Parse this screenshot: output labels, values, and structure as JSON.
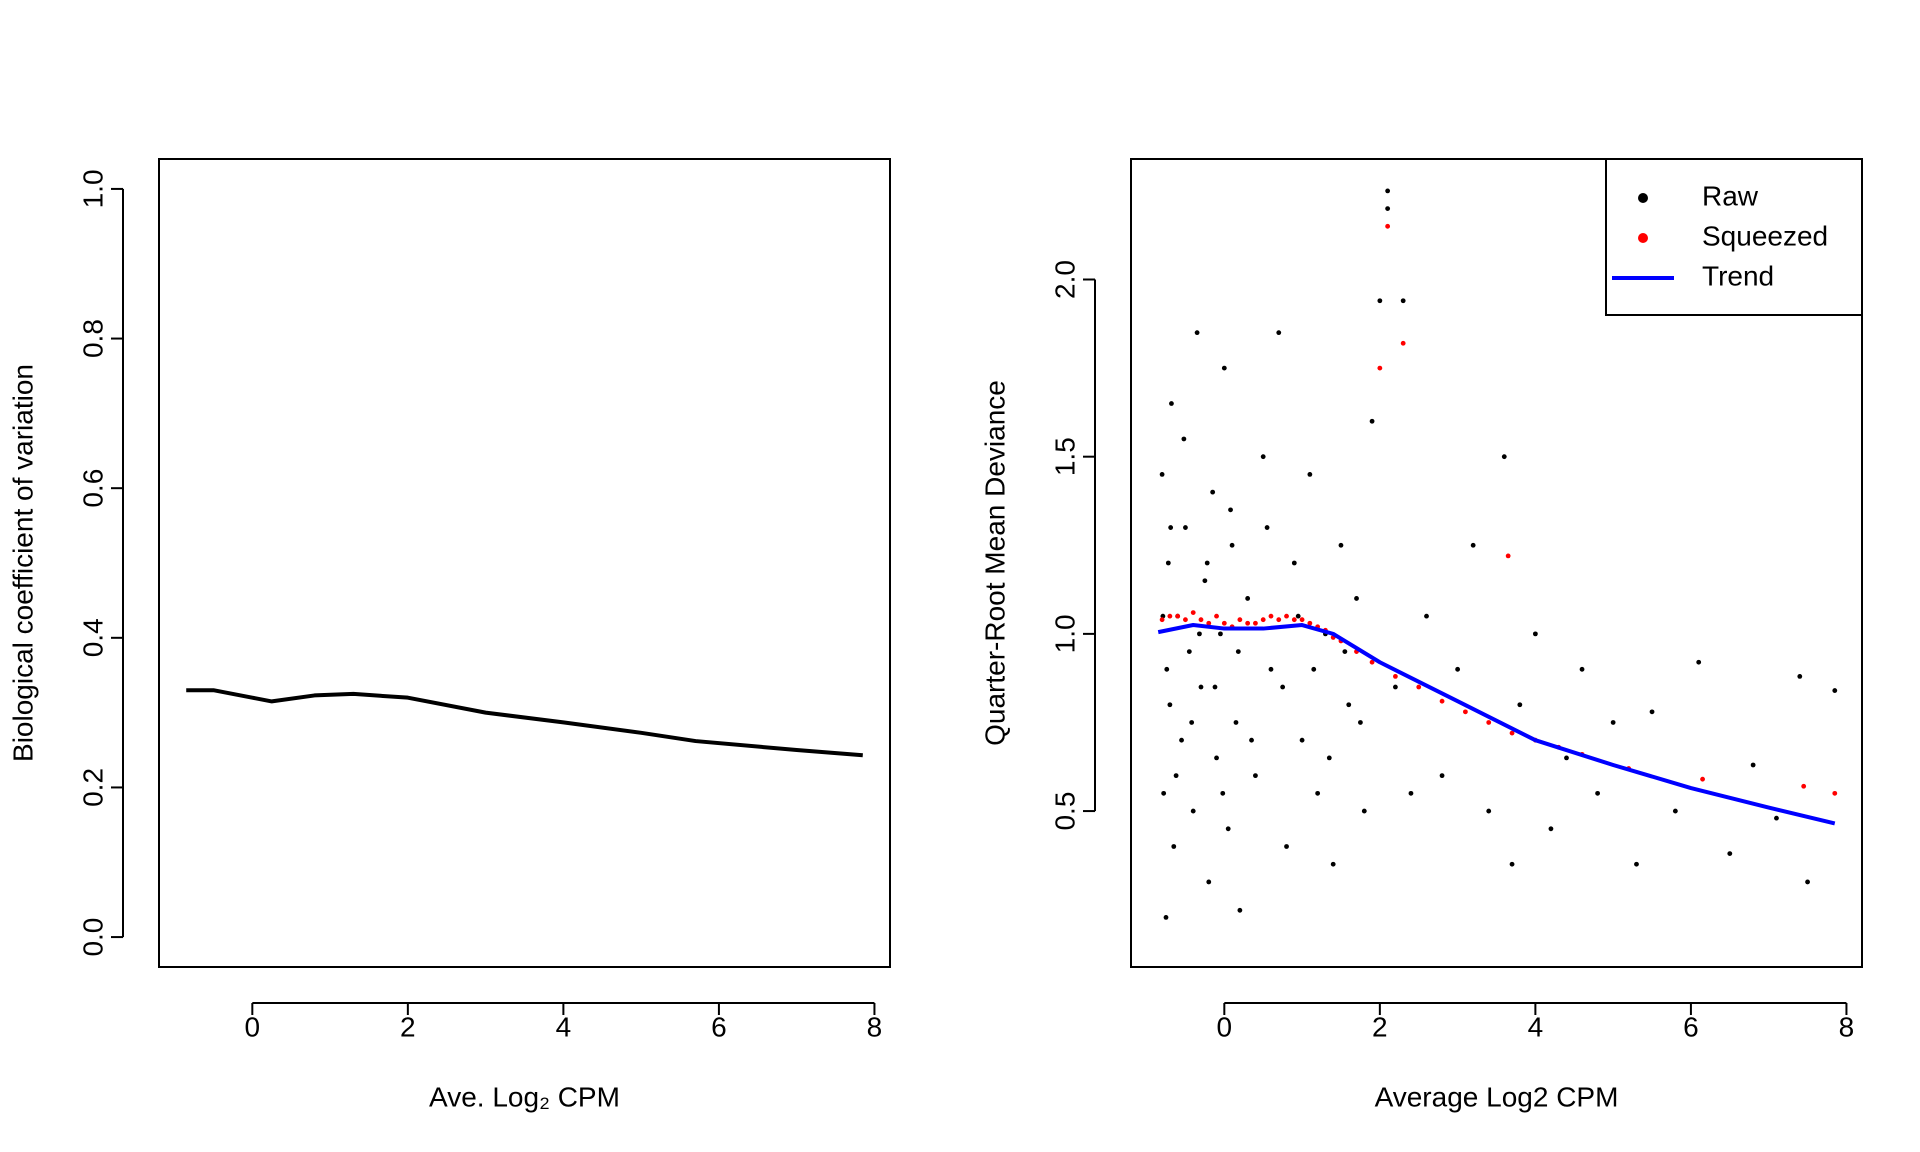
{
  "chart_data": [
    {
      "type": "line",
      "xlabel": "Ave. Log₂ CPM",
      "ylabel": "Biological coefficient of variation",
      "xlim": [
        -1.2,
        8.2
      ],
      "ylim": [
        -0.04,
        1.04
      ],
      "xticks": [
        0,
        2,
        4,
        6,
        8
      ],
      "yticks": [
        {
          "value": 0,
          "label": "0.0"
        },
        0.2,
        0.4,
        0.6,
        0.8,
        {
          "value": 1,
          "label": "1.0"
        }
      ],
      "series": [
        {
          "color": "#000000",
          "style": "line",
          "x": [
            -0.85,
            -0.5,
            0,
            0.25,
            0.8,
            1.3,
            2,
            3,
            4,
            5,
            5.7,
            7,
            7.85
          ],
          "values": [
            0.33,
            0.33,
            0.32,
            0.315,
            0.323,
            0.325,
            0.32,
            0.3,
            0.287,
            0.273,
            0.262,
            0.25,
            0.243
          ]
        }
      ]
    },
    {
      "type": "scatter",
      "xlabel": "Average Log2 CPM",
      "ylabel": "Quarter-Root Mean Deviance",
      "xlim": [
        -1.2,
        8.2
      ],
      "ylim": [
        0.06,
        2.34
      ],
      "xticks": [
        0,
        2,
        4,
        6,
        8
      ],
      "yticks": [
        0.5,
        {
          "value": 1,
          "label": "1.0"
        },
        1.5,
        {
          "value": 2,
          "label": "2.0"
        }
      ],
      "legend": "topright",
      "series": [
        {
          "name": "Raw",
          "color": "#000000",
          "style": "points",
          "x": [
            -0.8,
            -0.78,
            -0.75,
            -0.72,
            -0.7,
            -0.68,
            -0.65,
            -0.6,
            -0.55,
            -0.5,
            -0.45,
            -0.4,
            -0.35,
            -0.3,
            -0.25,
            -0.2,
            -0.15,
            -0.1,
            -0.05,
            0,
            0.05,
            0.1,
            0.15,
            0.2,
            0.3,
            0.4,
            0.5,
            0.6,
            0.7,
            0.8,
            0.9,
            1.0,
            1.1,
            1.2,
            1.3,
            1.4,
            1.5,
            1.6,
            1.7,
            1.8,
            -0.79,
            -0.74,
            -0.69,
            -0.62,
            -0.52,
            -0.42,
            -0.32,
            -0.22,
            -0.12,
            -0.02,
            0.08,
            0.18,
            0.35,
            0.55,
            0.75,
            0.95,
            1.15,
            1.35,
            1.55,
            1.75,
            1.9,
            2.0,
            2.1,
            2.1,
            2.2,
            2.3,
            2.4,
            2.6,
            2.8,
            3.0,
            3.2,
            3.4,
            3.6,
            3.7,
            3.8,
            4.0,
            4.2,
            4.4,
            4.6,
            4.8,
            5.0,
            5.3,
            5.5,
            5.8,
            6.1,
            6.5,
            6.8,
            7.1,
            7.5,
            7.4,
            7.85
          ],
          "values": [
            1.45,
            0.55,
            0.2,
            1.2,
            0.8,
            1.65,
            0.4,
            1.05,
            0.7,
            1.3,
            0.95,
            0.5,
            1.85,
            0.85,
            1.15,
            0.3,
            1.4,
            0.65,
            1.0,
            1.75,
            0.45,
            1.25,
            0.75,
            0.22,
            1.1,
            0.6,
            1.5,
            0.9,
            1.85,
            0.4,
            1.2,
            0.7,
            1.45,
            0.55,
            1.0,
            0.35,
            1.25,
            0.8,
            1.1,
            0.5,
            1.05,
            0.9,
            1.3,
            0.6,
            1.55,
            0.75,
            1.0,
            1.2,
            0.85,
            0.55,
            1.35,
            0.95,
            0.7,
            1.3,
            0.85,
            1.05,
            0.9,
            0.65,
            0.95,
            0.75,
            1.6,
            1.94,
            2.25,
            2.2,
            0.85,
            1.94,
            0.55,
            1.05,
            0.6,
            0.9,
            1.25,
            0.5,
            1.5,
            0.35,
            0.8,
            1.0,
            0.45,
            0.65,
            0.9,
            0.55,
            0.75,
            0.35,
            0.78,
            0.5,
            0.92,
            0.38,
            0.63,
            0.48,
            0.3,
            0.88,
            0.84
          ]
        },
        {
          "name": "Squeezed",
          "color": "#ff0000",
          "style": "points",
          "x": [
            -0.8,
            -0.7,
            -0.6,
            -0.5,
            -0.4,
            -0.3,
            -0.2,
            -0.1,
            0,
            0.1,
            0.2,
            0.3,
            0.4,
            0.5,
            0.6,
            0.7,
            0.8,
            0.9,
            1.0,
            1.1,
            1.2,
            1.3,
            1.4,
            1.5,
            1.7,
            1.9,
            2.2,
            2.5,
            2.8,
            3.1,
            3.4,
            3.7,
            4.0,
            4.3,
            4.6,
            5.2,
            2.0,
            2.1,
            2.3,
            3.65,
            6.15,
            7.45,
            7.85
          ],
          "values": [
            1.04,
            1.05,
            1.05,
            1.04,
            1.06,
            1.04,
            1.03,
            1.05,
            1.03,
            1.02,
            1.04,
            1.03,
            1.03,
            1.04,
            1.05,
            1.04,
            1.05,
            1.04,
            1.04,
            1.03,
            1.02,
            1.01,
            0.99,
            0.98,
            0.95,
            0.92,
            0.88,
            0.85,
            0.81,
            0.78,
            0.75,
            0.72,
            0.7,
            0.68,
            0.66,
            0.62,
            1.75,
            2.15,
            1.82,
            1.22,
            0.59,
            0.57,
            0.55
          ]
        },
        {
          "name": "Trend",
          "color": "#0000ff",
          "style": "line",
          "x": [
            -0.85,
            -0.4,
            0,
            0.5,
            1,
            1.4,
            2,
            3,
            4,
            5,
            6,
            7,
            7.85
          ],
          "values": [
            1.005,
            1.025,
            1.015,
            1.015,
            1.025,
            1.0,
            0.92,
            0.81,
            0.7,
            0.63,
            0.565,
            0.51,
            0.465
          ]
        }
      ]
    }
  ]
}
